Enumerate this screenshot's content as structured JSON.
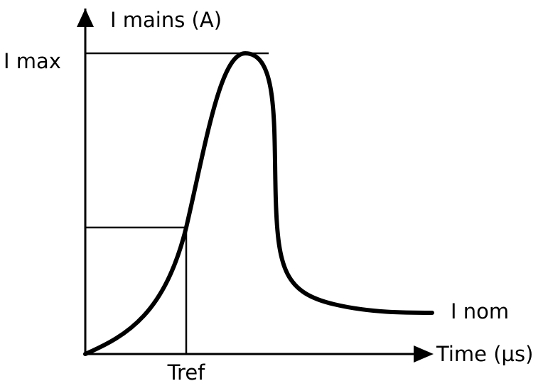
{
  "axes": {
    "y_label": "I mains (A)",
    "x_label": "Time (µs)"
  },
  "levels": {
    "max": "I max",
    "nom": "I nom"
  },
  "markers": {
    "time_ref": "Tref"
  }
}
